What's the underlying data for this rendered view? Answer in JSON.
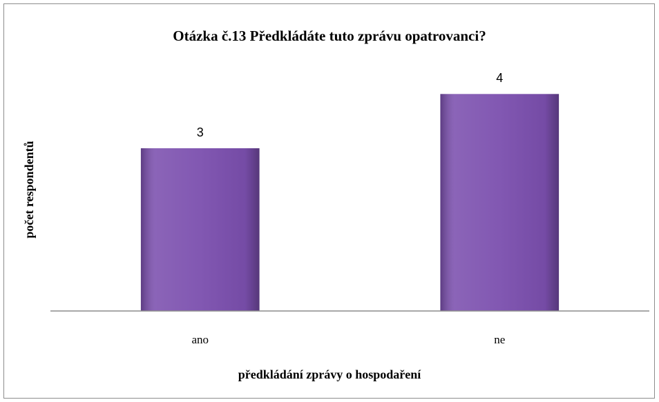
{
  "chart_data": {
    "type": "bar",
    "title": "Otázka č.13 Předkládáte tuto zprávu opatrovanci?",
    "x_label": "předkládání zprávy o hospodaření",
    "y_label": "počet respondentů",
    "categories": [
      "ano",
      "ne"
    ],
    "values": [
      3,
      4
    ],
    "color": "#7b4fae",
    "ylim": [
      0,
      4.5
    ],
    "grid": false
  }
}
